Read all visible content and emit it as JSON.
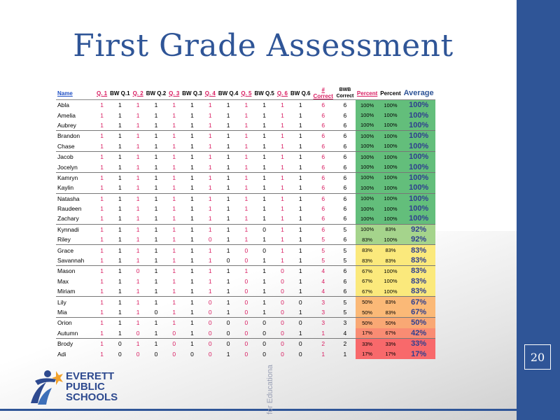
{
  "slide": {
    "title": "First Grade Assessment",
    "page_number": "20",
    "vertical_text": "for Educationa",
    "logo": {
      "line1": "EVERETT",
      "line2": "PUBLIC",
      "line3": "SCHOOLS"
    }
  },
  "table": {
    "headers": [
      "Name",
      "Q. 1",
      "BW Q.1",
      "Q. 2",
      "BW Q.2",
      "Q. 3",
      "BW Q.3",
      "Q. 4",
      "BW Q.4",
      "Q. 5",
      "BW Q.5",
      "Q. 6",
      "BW Q.6",
      "# Correct",
      "BWB Correct",
      "Percent",
      "Percent",
      "Average"
    ],
    "rows": [
      {
        "name": "Abla",
        "q": [
          "1",
          "1",
          "1",
          "1",
          "1",
          "1",
          "1",
          "1",
          "1",
          "1",
          "1",
          "1"
        ],
        "c": "6",
        "bw": "6",
        "p1": "100%",
        "p2": "100%",
        "avg": "100%",
        "color": "g",
        "gs": true
      },
      {
        "name": "Amelia",
        "q": [
          "1",
          "1",
          "1",
          "1",
          "1",
          "1",
          "1",
          "1",
          "1",
          "1",
          "1",
          "1"
        ],
        "c": "6",
        "bw": "6",
        "p1": "100%",
        "p2": "100%",
        "avg": "100%",
        "color": "g",
        "gs": false
      },
      {
        "name": "Aubrey",
        "q": [
          "1",
          "1",
          "1",
          "1",
          "1",
          "1",
          "1",
          "1",
          "1",
          "1",
          "1",
          "1"
        ],
        "c": "6",
        "bw": "6",
        "p1": "100%",
        "p2": "100%",
        "avg": "100%",
        "color": "g",
        "gs": false
      },
      {
        "name": "Brandon",
        "q": [
          "1",
          "1",
          "1",
          "1",
          "1",
          "1",
          "1",
          "1",
          "1",
          "1",
          "1",
          "1"
        ],
        "c": "6",
        "bw": "6",
        "p1": "100%",
        "p2": "100%",
        "avg": "100%",
        "color": "g",
        "gs": true
      },
      {
        "name": "Chase",
        "q": [
          "1",
          "1",
          "1",
          "1",
          "1",
          "1",
          "1",
          "1",
          "1",
          "1",
          "1",
          "1"
        ],
        "c": "6",
        "bw": "6",
        "p1": "100%",
        "p2": "100%",
        "avg": "100%",
        "color": "g",
        "gs": false
      },
      {
        "name": "Jacob",
        "q": [
          "1",
          "1",
          "1",
          "1",
          "1",
          "1",
          "1",
          "1",
          "1",
          "1",
          "1",
          "1"
        ],
        "c": "6",
        "bw": "6",
        "p1": "100%",
        "p2": "100%",
        "avg": "100%",
        "color": "g",
        "gs": true
      },
      {
        "name": "Jocelyn",
        "q": [
          "1",
          "1",
          "1",
          "1",
          "1",
          "1",
          "1",
          "1",
          "1",
          "1",
          "1",
          "1"
        ],
        "c": "6",
        "bw": "6",
        "p1": "100%",
        "p2": "100%",
        "avg": "100%",
        "color": "g",
        "gs": false
      },
      {
        "name": "Kamryn",
        "q": [
          "1",
          "1",
          "1",
          "1",
          "1",
          "1",
          "1",
          "1",
          "1",
          "1",
          "1",
          "1"
        ],
        "c": "6",
        "bw": "6",
        "p1": "100%",
        "p2": "100%",
        "avg": "100%",
        "color": "g",
        "gs": true
      },
      {
        "name": "Kaylin",
        "q": [
          "1",
          "1",
          "1",
          "1",
          "1",
          "1",
          "1",
          "1",
          "1",
          "1",
          "1",
          "1"
        ],
        "c": "6",
        "bw": "6",
        "p1": "100%",
        "p2": "100%",
        "avg": "100%",
        "color": "g",
        "gs": false
      },
      {
        "name": "Natasha",
        "q": [
          "1",
          "1",
          "1",
          "1",
          "1",
          "1",
          "1",
          "1",
          "1",
          "1",
          "1",
          "1"
        ],
        "c": "6",
        "bw": "6",
        "p1": "100%",
        "p2": "100%",
        "avg": "100%",
        "color": "g",
        "gs": true
      },
      {
        "name": "Raudeen",
        "q": [
          "1",
          "1",
          "1",
          "1",
          "1",
          "1",
          "1",
          "1",
          "1",
          "1",
          "1",
          "1"
        ],
        "c": "6",
        "bw": "6",
        "p1": "100%",
        "p2": "100%",
        "avg": "100%",
        "color": "g",
        "gs": false
      },
      {
        "name": "Zachary",
        "q": [
          "1",
          "1",
          "1",
          "1",
          "1",
          "1",
          "1",
          "1",
          "1",
          "1",
          "1",
          "1"
        ],
        "c": "6",
        "bw": "6",
        "p1": "100%",
        "p2": "100%",
        "avg": "100%",
        "color": "g",
        "gs": false
      },
      {
        "name": "Kynnadi",
        "q": [
          "1",
          "1",
          "1",
          "1",
          "1",
          "1",
          "1",
          "1",
          "1",
          "0",
          "1",
          "1"
        ],
        "c": "6",
        "bw": "5",
        "p1": "100%",
        "p2": "83%",
        "avg": "92%",
        "color": "lg",
        "gs": true
      },
      {
        "name": "Riley",
        "q": [
          "1",
          "1",
          "1",
          "1",
          "1",
          "1",
          "0",
          "1",
          "1",
          "1",
          "1",
          "1"
        ],
        "c": "5",
        "bw": "6",
        "p1": "83%",
        "p2": "100%",
        "avg": "92%",
        "color": "lg",
        "gs": false
      },
      {
        "name": "Grace",
        "q": [
          "1",
          "1",
          "1",
          "1",
          "1",
          "1",
          "1",
          "1",
          "0",
          "0",
          "1",
          "1"
        ],
        "c": "5",
        "bw": "5",
        "p1": "83%",
        "p2": "83%",
        "avg": "83%",
        "color": "y",
        "gs": true
      },
      {
        "name": "Savannah",
        "q": [
          "1",
          "1",
          "1",
          "1",
          "1",
          "1",
          "1",
          "0",
          "0",
          "1",
          "1",
          "1"
        ],
        "c": "5",
        "bw": "5",
        "p1": "83%",
        "p2": "83%",
        "avg": "83%",
        "color": "y",
        "gs": false
      },
      {
        "name": "Mason",
        "q": [
          "1",
          "1",
          "0",
          "1",
          "1",
          "1",
          "1",
          "1",
          "1",
          "1",
          "0",
          "1"
        ],
        "c": "4",
        "bw": "6",
        "p1": "67%",
        "p2": "100%",
        "avg": "83%",
        "color": "y",
        "gs": true
      },
      {
        "name": "Max",
        "q": [
          "1",
          "1",
          "1",
          "1",
          "1",
          "1",
          "1",
          "1",
          "0",
          "1",
          "0",
          "1"
        ],
        "c": "4",
        "bw": "6",
        "p1": "67%",
        "p2": "100%",
        "avg": "83%",
        "color": "y",
        "gs": false
      },
      {
        "name": "Miriam",
        "q": [
          "1",
          "1",
          "1",
          "1",
          "1",
          "1",
          "1",
          "1",
          "0",
          "1",
          "0",
          "1"
        ],
        "c": "4",
        "bw": "6",
        "p1": "67%",
        "p2": "100%",
        "avg": "83%",
        "color": "y",
        "gs": false
      },
      {
        "name": "Lily",
        "q": [
          "1",
          "1",
          "1",
          "1",
          "1",
          "1",
          "0",
          "1",
          "0",
          "1",
          "0",
          "0"
        ],
        "c": "3",
        "bw": "5",
        "p1": "50%",
        "p2": "83%",
        "avg": "67%",
        "color": "o",
        "gs": true
      },
      {
        "name": "Mia",
        "q": [
          "1",
          "1",
          "1",
          "0",
          "1",
          "1",
          "0",
          "1",
          "0",
          "1",
          "0",
          "1"
        ],
        "c": "3",
        "bw": "5",
        "p1": "50%",
        "p2": "83%",
        "avg": "67%",
        "color": "o",
        "gs": false
      },
      {
        "name": "Orion",
        "q": [
          "1",
          "1",
          "1",
          "1",
          "1",
          "1",
          "0",
          "0",
          "0",
          "0",
          "0",
          "0"
        ],
        "c": "3",
        "bw": "3",
        "p1": "50%",
        "p2": "50%",
        "avg": "50%",
        "color": "lo",
        "gs": true
      },
      {
        "name": "Autumn",
        "q": [
          "1",
          "1",
          "0",
          "1",
          "0",
          "1",
          "0",
          "0",
          "0",
          "0",
          "0",
          "1"
        ],
        "c": "1",
        "bw": "4",
        "p1": "17%",
        "p2": "67%",
        "avg": "42%",
        "color": "lr",
        "gs": false
      },
      {
        "name": "Brody",
        "q": [
          "1",
          "0",
          "1",
          "1",
          "0",
          "1",
          "0",
          "0",
          "0",
          "0",
          "0",
          "0"
        ],
        "c": "2",
        "bw": "2",
        "p1": "33%",
        "p2": "33%",
        "avg": "33%",
        "color": "r",
        "gs": true
      },
      {
        "name": "Adi",
        "q": [
          "1",
          "0",
          "0",
          "0",
          "0",
          "0",
          "0",
          "1",
          "0",
          "0",
          "0",
          "0"
        ],
        "c": "1",
        "bw": "1",
        "p1": "17%",
        "p2": "17%",
        "avg": "17%",
        "color": "r",
        "gs": false
      }
    ]
  },
  "colors": {
    "brand_blue": "#2f5597",
    "green": "#63be7b",
    "yellow": "#fbe97c",
    "red": "#f8696b"
  }
}
